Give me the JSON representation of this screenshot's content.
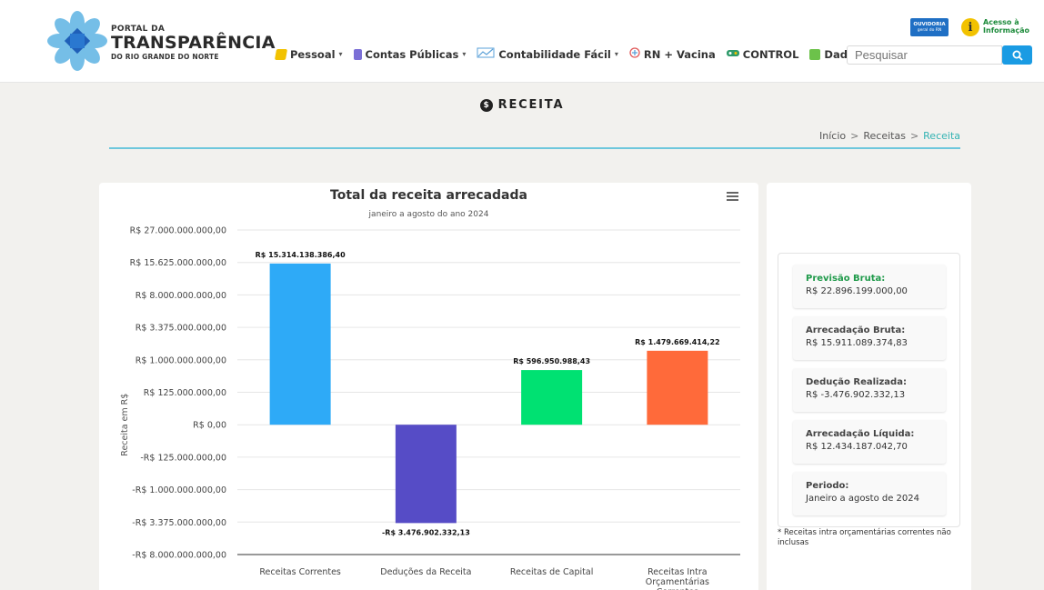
{
  "header": {
    "logo": {
      "line1": "PORTAL DA",
      "line2": "TRANSPARÊNCIA",
      "line3": "DO RIO GRANDE DO NORTE",
      "color": "#3aa6dc"
    },
    "ouvidoria": {
      "line1": "OUVIDORIA",
      "line2": "geral do RN"
    },
    "acesso": {
      "line1": "Acesso à",
      "line2": "Informação"
    },
    "nav": [
      {
        "label": "Pessoal",
        "icon": "person-badge-icon",
        "color": "#f2c200",
        "dropdown": true
      },
      {
        "label": "Contas Públicas",
        "icon": "document-icon",
        "color": "#7b6fd6",
        "dropdown": true
      },
      {
        "label": "Contabilidade Fácil",
        "icon": "chart-line-icon",
        "color": "#5aa0d8",
        "dropdown": true
      },
      {
        "label": "RN + Vacina",
        "icon": "vaccine-icon",
        "color": "#e05a5a",
        "dropdown": false
      },
      {
        "label": "CONTROL",
        "icon": "control-icon",
        "color": "#2e9a6a",
        "dropdown": false
      },
      {
        "label": "Dados Abertos",
        "icon": "folder-icon",
        "color": "#6cc24a",
        "dropdown": false
      }
    ],
    "search": {
      "placeholder": "Pesquisar"
    }
  },
  "page": {
    "title": "RECEITA",
    "breadcrumb": [
      "Início",
      "Receitas",
      "Receita"
    ]
  },
  "chart_data": {
    "type": "bar",
    "title": "Total da receita arrecadada",
    "subtitle": "janeiro a agosto do ano 2024",
    "ylabel": "Receita em R$",
    "y_ticks": [
      "R$ 27.000.000.000,00",
      "R$ 15.625.000.000,00",
      "R$ 8.000.000.000,00",
      "R$ 3.375.000.000,00",
      "R$ 1.000.000.000,00",
      "R$ 125.000.000,00",
      "R$ 0,00",
      "-R$ 125.000.000,00",
      "-R$ 1.000.000.000,00",
      "-R$ 3.375.000.000,00",
      "-R$ 8.000.000.000,00"
    ],
    "y_tick_values": [
      27000000000,
      15625000000,
      8000000000,
      3375000000,
      1000000000,
      125000000,
      0,
      -125000000,
      -1000000000,
      -3375000000,
      -8000000000
    ],
    "scale": "cube-root",
    "categories": [
      "Receitas Correntes",
      "Deduções da Receita",
      "Receitas de Capital",
      "Receitas Intra Orçamentárias Correntes"
    ],
    "values": [
      15314138386.4,
      -3476902332.13,
      596950988.43,
      1479669414.22
    ],
    "data_labels": [
      "R$ 15.314.138.386,40",
      "-R$ 3.476.902.332,13",
      "R$ 596.950.988,43",
      "R$ 1.479.669.414,22"
    ],
    "colors": [
      "#2eaaf7",
      "#564cc6",
      "#00e172",
      "#ff6a3a"
    ],
    "grid": true
  },
  "summary": {
    "items": [
      {
        "label": "Previsão Bruta:",
        "value": "R$ 22.896.199.000,00"
      },
      {
        "label": "Arrecadação Bruta:",
        "value": "R$ 15.911.089.374,83"
      },
      {
        "label": "Dedução Realizada:",
        "value": "R$ -3.476.902.332,13"
      },
      {
        "label": "Arrecadação Líquida:",
        "value": "R$ 12.434.187.042,70"
      },
      {
        "label": "Periodo:",
        "value": "Janeiro a agosto de 2024"
      }
    ],
    "note": "* Receitas intra orçamentárias correntes não inclusas"
  }
}
